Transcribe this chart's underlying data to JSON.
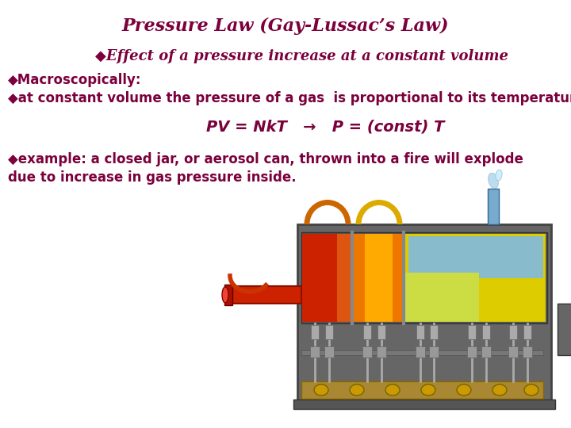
{
  "title": "Pressure Law (Gay-Lussac’s Law)",
  "title_color": "#7B003C",
  "title_fontsize": 16,
  "bullet": "◆",
  "line1": "Effect of a pressure increase at a constant volume",
  "line1_fontsize": 13,
  "line2": "Macroscopically:",
  "line2_fontsize": 12,
  "line3": "at constant volume the pressure of a gas  is proportional to its temperature:",
  "line3_fontsize": 12,
  "formula": "PV = NkT   →   P = (const) T",
  "formula_fontsize": 14,
  "line4a": "example: a closed jar, or aerosol can, thrown into a fire will explode",
  "line4b": "due to increase in gas pressure inside.",
  "line4_fontsize": 12,
  "background_color": "#ffffff"
}
